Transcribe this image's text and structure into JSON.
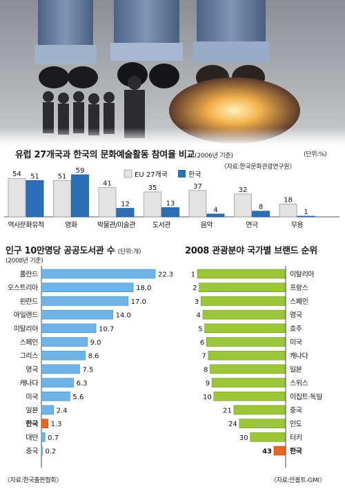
{
  "charts": {
    "culture": {
      "title": "유럽 27개국과 한국의 문화예술활동 참여율 비교",
      "title_suffix": "(2006년 기준)",
      "unit": "(단위:%)",
      "source": "〈자료:한국문화관광연구원〉"
    },
    "library": {
      "title": "인구 10만명당 공공도서관 수",
      "unit": "(단위:개)",
      "subtitle": "(2008년 기준)",
      "source": "〈자료:한국출판협회〉"
    },
    "brand": {
      "title": "2008 관광분야 국가별 브랜드 순위",
      "source": "〈자료:안홀트-GMI〉"
    }
  },
  "chart_data": [
    {
      "type": "bar",
      "title": "유럽 27개국과 한국의 문화예술활동 참여율 비교",
      "categories": [
        "역사문화유적",
        "영화",
        "박물관/미술관",
        "도서관",
        "음악",
        "연극",
        "무용"
      ],
      "series": [
        {
          "name": "EU 27개국",
          "values": [
            54,
            51,
            41,
            35,
            37,
            32,
            18
          ],
          "color": "#e3e3e3"
        },
        {
          "name": "한국",
          "values": [
            51,
            59,
            12,
            13,
            4,
            8,
            1
          ],
          "color": "#2a6fb8"
        }
      ],
      "ylim": [
        0,
        60
      ]
    },
    {
      "type": "bar",
      "orientation": "horizontal",
      "title": "인구 10만명당 공공도서관 수",
      "categories": [
        "폴란드",
        "오스트리아",
        "핀란드",
        "아일랜드",
        "이탈리아",
        "스페인",
        "그리스",
        "영국",
        "캐나다",
        "미국",
        "일본",
        "한국",
        "대만",
        "중국"
      ],
      "values": [
        22.3,
        18.0,
        17.0,
        14.0,
        10.7,
        9.0,
        8.6,
        7.5,
        6.3,
        5.6,
        2.4,
        1.3,
        0.7,
        0.2
      ],
      "value_labels": [
        "22.3",
        "18.0",
        "17.0",
        "14.0",
        "10.7",
        "9.0",
        "8.6",
        "7.5",
        "6.3",
        "5.6",
        "2.4",
        "1.3",
        "0.7",
        "0.2"
      ],
      "highlight": "한국",
      "bar_color": "#6fb4e6",
      "highlight_color": "#e8661e",
      "xlim": [
        0,
        22.3
      ]
    },
    {
      "type": "bar",
      "orientation": "horizontal",
      "title": "2008 관광분야 국가별 브랜드 순위",
      "categories": [
        "이탈리아",
        "프랑스",
        "스페인",
        "영국",
        "호주",
        "미국",
        "캐나다",
        "일본",
        "스위스",
        "이집트·독일",
        "중국",
        "인도",
        "터키",
        "한국"
      ],
      "values": [
        1,
        2,
        3,
        4,
        5,
        6,
        7,
        8,
        9,
        10,
        21,
        24,
        30,
        43
      ],
      "highlight": "한국",
      "bar_color": "#9bc638",
      "highlight_color": "#e8661e",
      "xlim": [
        0,
        43
      ]
    }
  ]
}
